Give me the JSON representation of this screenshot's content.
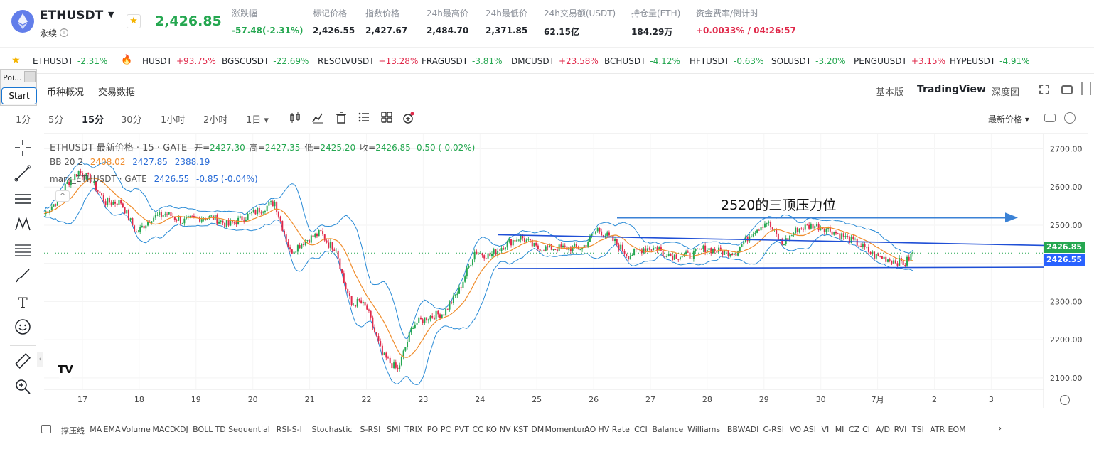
{
  "header": {
    "symbol": "ETHUSDT",
    "contract_type": "永续",
    "last_price": "2,426.85",
    "stats": [
      {
        "label": "涨跌幅",
        "value": "-57.48(-2.31%)",
        "color": "green"
      },
      {
        "label": "标记价格",
        "value": "2,426.55",
        "color": ""
      },
      {
        "label": "指数价格",
        "value": "2,427.67",
        "color": ""
      },
      {
        "label": "24h最高价",
        "value": "2,484.70",
        "color": ""
      },
      {
        "label": "24h最低价",
        "value": "2,371.85",
        "color": ""
      },
      {
        "label": "24h交易额(USDT)",
        "value": "62.15亿",
        "color": ""
      },
      {
        "label": "持仓量(ETH)",
        "value": "184.29万",
        "color": ""
      },
      {
        "label": "资金费率/倒计时",
        "value": "+0.0033% / 04:26:57",
        "color": "red"
      }
    ]
  },
  "ticker": [
    {
      "symbol": "ETHUSDT",
      "change": "-2.31%",
      "dir": "down"
    },
    {
      "symbol": "HUSDT",
      "change": "+93.75%",
      "dir": "up"
    },
    {
      "symbol": "BGSCUSDT",
      "change": "-22.69%",
      "dir": "down"
    },
    {
      "symbol": "RESOLVUSDT",
      "change": "+13.28%",
      "dir": "up"
    },
    {
      "symbol": "FRAGUSDT",
      "change": "-3.81%",
      "dir": "down"
    },
    {
      "symbol": "DMCUSDT",
      "change": "+23.58%",
      "dir": "up"
    },
    {
      "symbol": "BCHUSDT",
      "change": "-4.12%",
      "dir": "down"
    },
    {
      "symbol": "HFTUSDT",
      "change": "-0.63%",
      "dir": "down"
    },
    {
      "symbol": "SOLUSDT",
      "change": "-3.20%",
      "dir": "down"
    },
    {
      "symbol": "PENGUUSDT",
      "change": "+3.15%",
      "dir": "up"
    },
    {
      "symbol": "HYPEUSDT",
      "change": "-4.91%",
      "dir": "down"
    }
  ],
  "overlay": {
    "poi_label": "Poi...",
    "start_label": "Start"
  },
  "subnav": {
    "overview": "币种概况",
    "trade_data": "交易数据"
  },
  "views": {
    "basic": "基本版",
    "tradingview": "TradingView",
    "depth": "深度图"
  },
  "timeframes": [
    "1分",
    "5分",
    "15分",
    "30分",
    "1小时",
    "2小时",
    "1日 ▾"
  ],
  "active_timeframe": "15分",
  "price_type": "最新价格 ▾",
  "legend": {
    "main_title": "ETHUSDT 最新价格 · 15 · GATE",
    "ohlc": [
      {
        "k": "开=",
        "v": "2427.30"
      },
      {
        "k": "高=",
        "v": "2427.35"
      },
      {
        "k": "低=",
        "v": "2425.20"
      },
      {
        "k": "收=",
        "v": "2426.85"
      }
    ],
    "change": "-0.50 (-0.02%)",
    "bb_label": "BB 20 2",
    "bb_values": [
      "2408.02",
      "2427.85",
      "2388.19"
    ],
    "mark_label": "mark_ETHUSDT · GATE",
    "mark_value": "2426.55",
    "mark_change": "-0.85 (-0.04%)"
  },
  "annotation": "2520的三顶压力位",
  "price_tags": {
    "last": "2426.85",
    "mark": "2426.55"
  },
  "colors": {
    "up": "#25a750",
    "down": "#e0294a",
    "bb": "#2a8bd6",
    "ma": "#f08c2b",
    "annot": "#3b82d6",
    "line": "#1f4fd6"
  },
  "chart_data": {
    "type": "line",
    "y_ticks": [
      "2700.00",
      "2600.00",
      "2500.00",
      "2400.00",
      "2300.00",
      "2200.00",
      "2100.00"
    ],
    "x_ticks": [
      "17",
      "18",
      "19",
      "20",
      "21",
      "22",
      "23",
      "24",
      "25",
      "26",
      "27",
      "28",
      "29",
      "30",
      "7月",
      "2",
      "3"
    ],
    "ylim": [
      2070,
      2740
    ],
    "series": [
      {
        "name": "",
        "x": [
          0,
          3,
          6,
          9,
          12,
          16,
          20,
          24,
          28,
          32,
          36,
          40,
          44,
          48,
          52,
          56,
          60,
          64,
          68,
          72,
          74,
          76,
          78,
          80,
          82,
          84,
          86,
          88,
          92,
          96,
          100,
          104,
          108,
          112,
          116,
          120,
          124,
          128,
          132,
          136,
          140,
          144,
          148,
          152,
          156,
          160,
          161,
          162,
          163,
          164,
          166,
          168,
          170,
          172,
          176,
          180,
          184,
          188,
          192,
          196,
          200,
          204,
          208,
          212,
          216,
          220,
          224,
          226
        ],
        "y": [
          2530,
          2560,
          2610,
          2640,
          2620,
          2560,
          2560,
          2480,
          2520,
          2530,
          2510,
          2520,
          2520,
          2500,
          2520,
          2540,
          2560,
          2430,
          2460,
          2480,
          2450,
          2440,
          2350,
          2290,
          2300,
          2280,
          2220,
          2160,
          2120,
          2240,
          2260,
          2270,
          2330,
          2430,
          2420,
          2450,
          2470,
          2440,
          2440,
          2440,
          2440,
          2490,
          2460,
          2420,
          2440,
          2440,
          2420,
          2430,
          2420,
          2420,
          2420,
          2420,
          2430,
          2440,
          2430,
          2430,
          2480,
          2510,
          2450,
          2490,
          2500,
          2490,
          2470,
          2450,
          2420,
          2410,
          2400,
          2427
        ]
      }
    ]
  },
  "trendlines_price": {
    "resistance": 2520,
    "channel_top": 2460,
    "channel_bottom": 2390
  },
  "indicators": [
    "撑压线",
    "MA",
    "EMA",
    "Volume",
    "MACD",
    "KDJ",
    "BOLL",
    "TD Sequential",
    "RSI-S-I",
    "Stochastic",
    "S-RSI",
    "SMI",
    "TRIX",
    "PO",
    "PC",
    "PVT",
    "CC",
    "KO",
    "NV",
    "KST",
    "DM",
    "Momentum",
    "AO",
    "HV",
    "Rate",
    "CCI",
    "Balance",
    "Williams",
    "BBW",
    "ADI",
    "C-RSI",
    "VO",
    "ASI",
    "VI",
    "MI",
    "CZ",
    "CI",
    "A/D",
    "RVI",
    "TSI",
    "ATR",
    "EOM"
  ]
}
